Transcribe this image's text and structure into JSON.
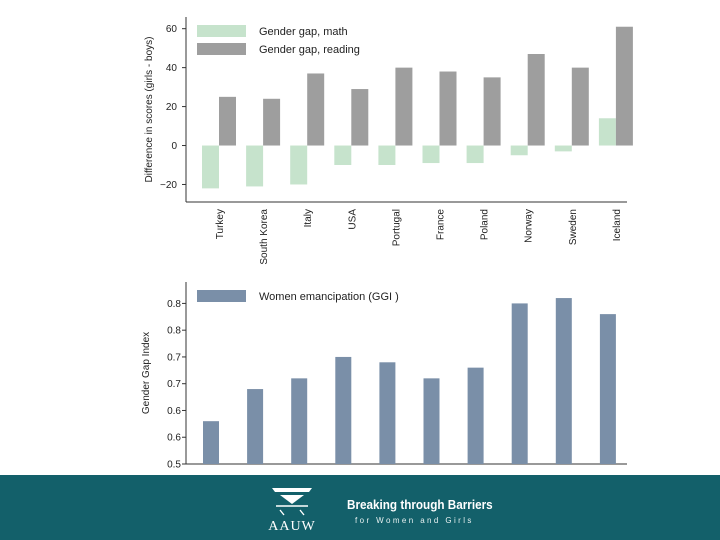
{
  "chart_data": [
    {
      "type": "bar",
      "ylabel": "Difference in scores (girls - boys)",
      "categories": [
        "Turkey",
        "South Korea",
        "Italy",
        "USA",
        "Portugal",
        "France",
        "Poland",
        "Norway",
        "Sweden",
        "Iceland"
      ],
      "series": [
        {
          "name": "Gender gap, math",
          "color": "#c6e3cc",
          "values": [
            -22,
            -21,
            -20,
            -10,
            -10,
            -9,
            -9,
            -5,
            -3,
            14
          ]
        },
        {
          "name": "Gender gap, reading",
          "color": "#9e9e9e",
          "values": [
            25,
            24,
            37,
            29,
            40,
            38,
            35,
            47,
            40,
            61
          ]
        }
      ],
      "ylim": [
        -29,
        66
      ],
      "yticks": [
        {
          "value": -20,
          "label": "−20"
        },
        {
          "value": 0,
          "label": "0"
        },
        {
          "value": 20,
          "label": "20"
        },
        {
          "value": 40,
          "label": "40"
        },
        {
          "value": 60,
          "label": "60"
        }
      ],
      "legend": "top-left"
    },
    {
      "type": "bar",
      "ylabel": "Gender Gap Index",
      "categories": [
        "Turkey",
        "South Korea",
        "Italy",
        "USA",
        "Portugal",
        "France",
        "Poland",
        "Norway",
        "Sweden",
        "Iceland"
      ],
      "series": [
        {
          "name": "Women emancipation (GGI   )",
          "color": "#7a8fa8",
          "values": [
            0.58,
            0.64,
            0.66,
            0.7,
            0.69,
            0.66,
            0.68,
            0.8,
            0.81,
            0.78
          ]
        }
      ],
      "ylim": [
        0.5,
        0.84
      ],
      "yticks": [
        {
          "value": 0.5,
          "label": "0.5"
        },
        {
          "value": 0.55,
          "label": "0.6"
        },
        {
          "value": 0.6,
          "label": "0.6"
        },
        {
          "value": 0.65,
          "label": "0.7"
        },
        {
          "value": 0.7,
          "label": "0.7"
        },
        {
          "value": 0.75,
          "label": "0.8"
        },
        {
          "value": 0.8,
          "label": "0.8"
        }
      ],
      "legend": "top-left"
    }
  ],
  "footer": {
    "logo_text": "AAUW",
    "title": "Breaking through Barriers",
    "subtitle": "for Women and Girls",
    "background_color": "#13606a"
  }
}
